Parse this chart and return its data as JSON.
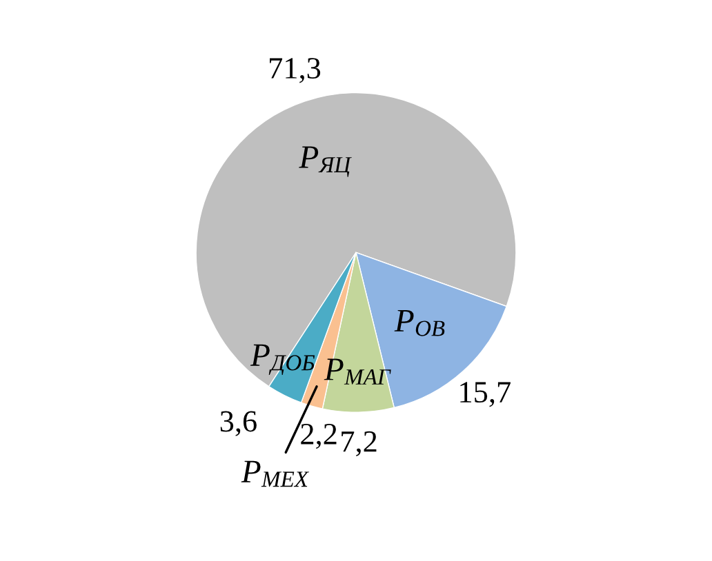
{
  "chart_data": {
    "type": "pie",
    "categories": [
      "P$_{ЯЦ}$",
      "P$_{ОВ}$",
      "P$_{МАГ}$",
      "P$_{МЕХ}$",
      "P$_{ДОБ}$"
    ],
    "values": [
      71.3,
      15.7,
      7.2,
      2.2,
      3.6
    ],
    "value_labels": [
      "71,3",
      "15,7",
      "7,2",
      "2,2",
      "3,6"
    ],
    "colors": [
      "#bfbfbf",
      "#8eb4e3",
      "#c3d69b",
      "#fac090",
      "#4bacc6"
    ],
    "legend": false
  }
}
